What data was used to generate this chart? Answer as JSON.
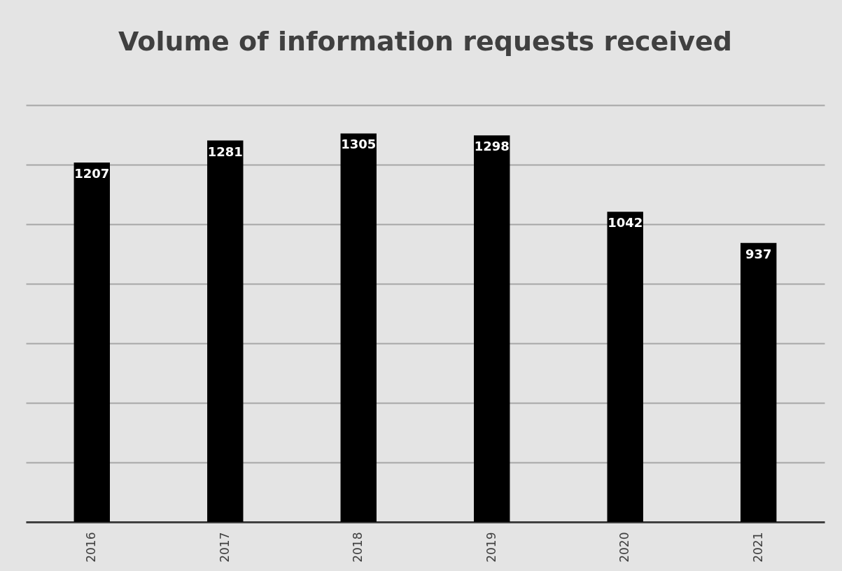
{
  "chart_data": {
    "type": "bar",
    "title": "Volume of information requests received",
    "categories": [
      "2016",
      "2017",
      "2018",
      "2019",
      "2020",
      "2021"
    ],
    "values": [
      1207,
      1281,
      1305,
      1298,
      1042,
      937
    ],
    "color": "#000000",
    "data_labels": true,
    "grid": "y",
    "ylim": [
      0,
      1400
    ],
    "yticks": [
      {
        "value": 0,
        "label": null
      },
      {
        "value": 200,
        "label": null
      },
      {
        "value": 400,
        "label": null
      },
      {
        "value": 600,
        "label": null
      },
      {
        "value": 800,
        "label": null
      },
      {
        "value": 1000,
        "label": null
      },
      {
        "value": 1200,
        "label": null
      },
      {
        "value": 1400,
        "label": null
      }
    ],
    "tick_labels": "x"
  }
}
